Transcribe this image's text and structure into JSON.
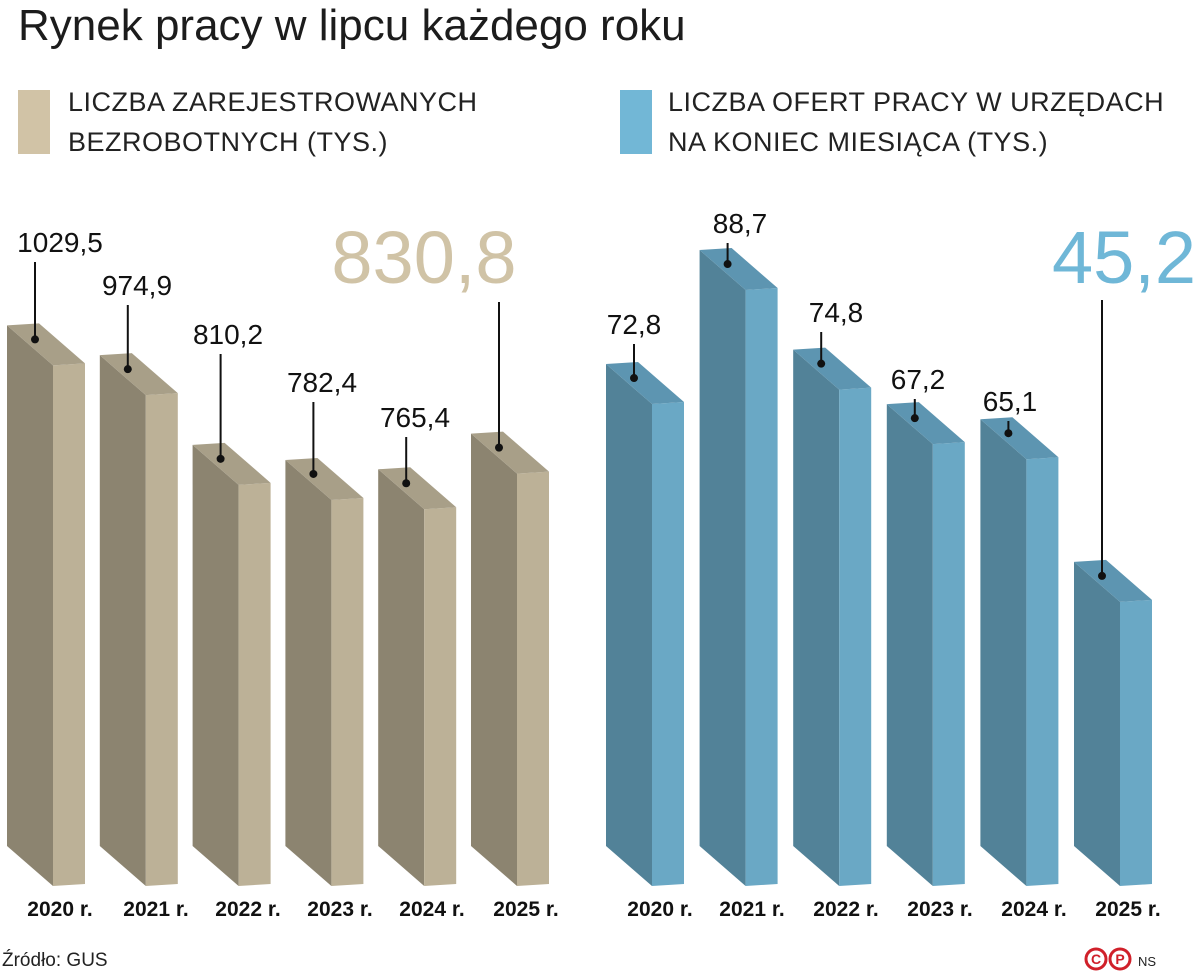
{
  "title": "Rynek pracy w lipcu każdego roku",
  "legend": [
    {
      "line1": "LICZBA ZAREJESTROWANYCH",
      "line2": "BEZROBOTNYCH (TYS.)",
      "color": "#d1c3a6"
    },
    {
      "line1": "LICZBA OFERT PRACY W URZĘDACH",
      "line2": "NA KONIEC MIESIĄCA (TYS.)",
      "color": "#72b7d6"
    }
  ],
  "chart_data": [
    {
      "type": "bar",
      "name": "unemployed",
      "categories": [
        "2020 r.",
        "2021 r.",
        "2022 r.",
        "2023 r.",
        "2024 r.",
        "2025 r."
      ],
      "values": [
        1029.5,
        974.9,
        810.2,
        782.4,
        765.4,
        830.8
      ],
      "labels": [
        "1029,5",
        "974,9",
        "810,2",
        "782,4",
        "765,4",
        "830,8"
      ],
      "highlight_index": 5,
      "colors": {
        "front": "#bcb197",
        "side": "#8c8470",
        "top": "#a89f88",
        "highlight": "#d0c3a6"
      }
    },
    {
      "type": "bar",
      "name": "job_offers",
      "categories": [
        "2020 r.",
        "2021 r.",
        "2022 r.",
        "2023 r.",
        "2024 r.",
        "2025 r."
      ],
      "values": [
        72.8,
        88.7,
        74.8,
        67.2,
        65.1,
        45.2
      ],
      "labels": [
        "72,8",
        "88,7",
        "74,8",
        "67,2",
        "65,1",
        "45,2"
      ],
      "highlight_index": 5,
      "colors": {
        "front": "#6aa8c5",
        "side": "#528298",
        "top": "#5d95b1",
        "highlight": "#6fb7d7"
      }
    }
  ],
  "source": "Źródło: GUS",
  "logo_text": "ⒸⓅ",
  "author": "NS"
}
